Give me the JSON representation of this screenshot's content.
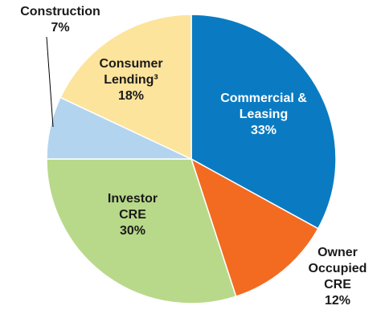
{
  "chart_data": {
    "type": "pie",
    "categories": [
      "Commercial & Leasing",
      "Owner Occupied CRE",
      "Investor CRE",
      "Construction",
      "Consumer Lending³"
    ],
    "values": [
      33,
      12,
      30,
      7,
      18
    ],
    "value_labels": [
      "33%",
      "12%",
      "30%",
      "7%",
      "18%"
    ],
    "colors": [
      "#0a7bc2",
      "#f26b21",
      "#b8d98a",
      "#b3d4ef",
      "#fde49c"
    ],
    "start_angle": 90,
    "direction": "clockwise"
  }
}
